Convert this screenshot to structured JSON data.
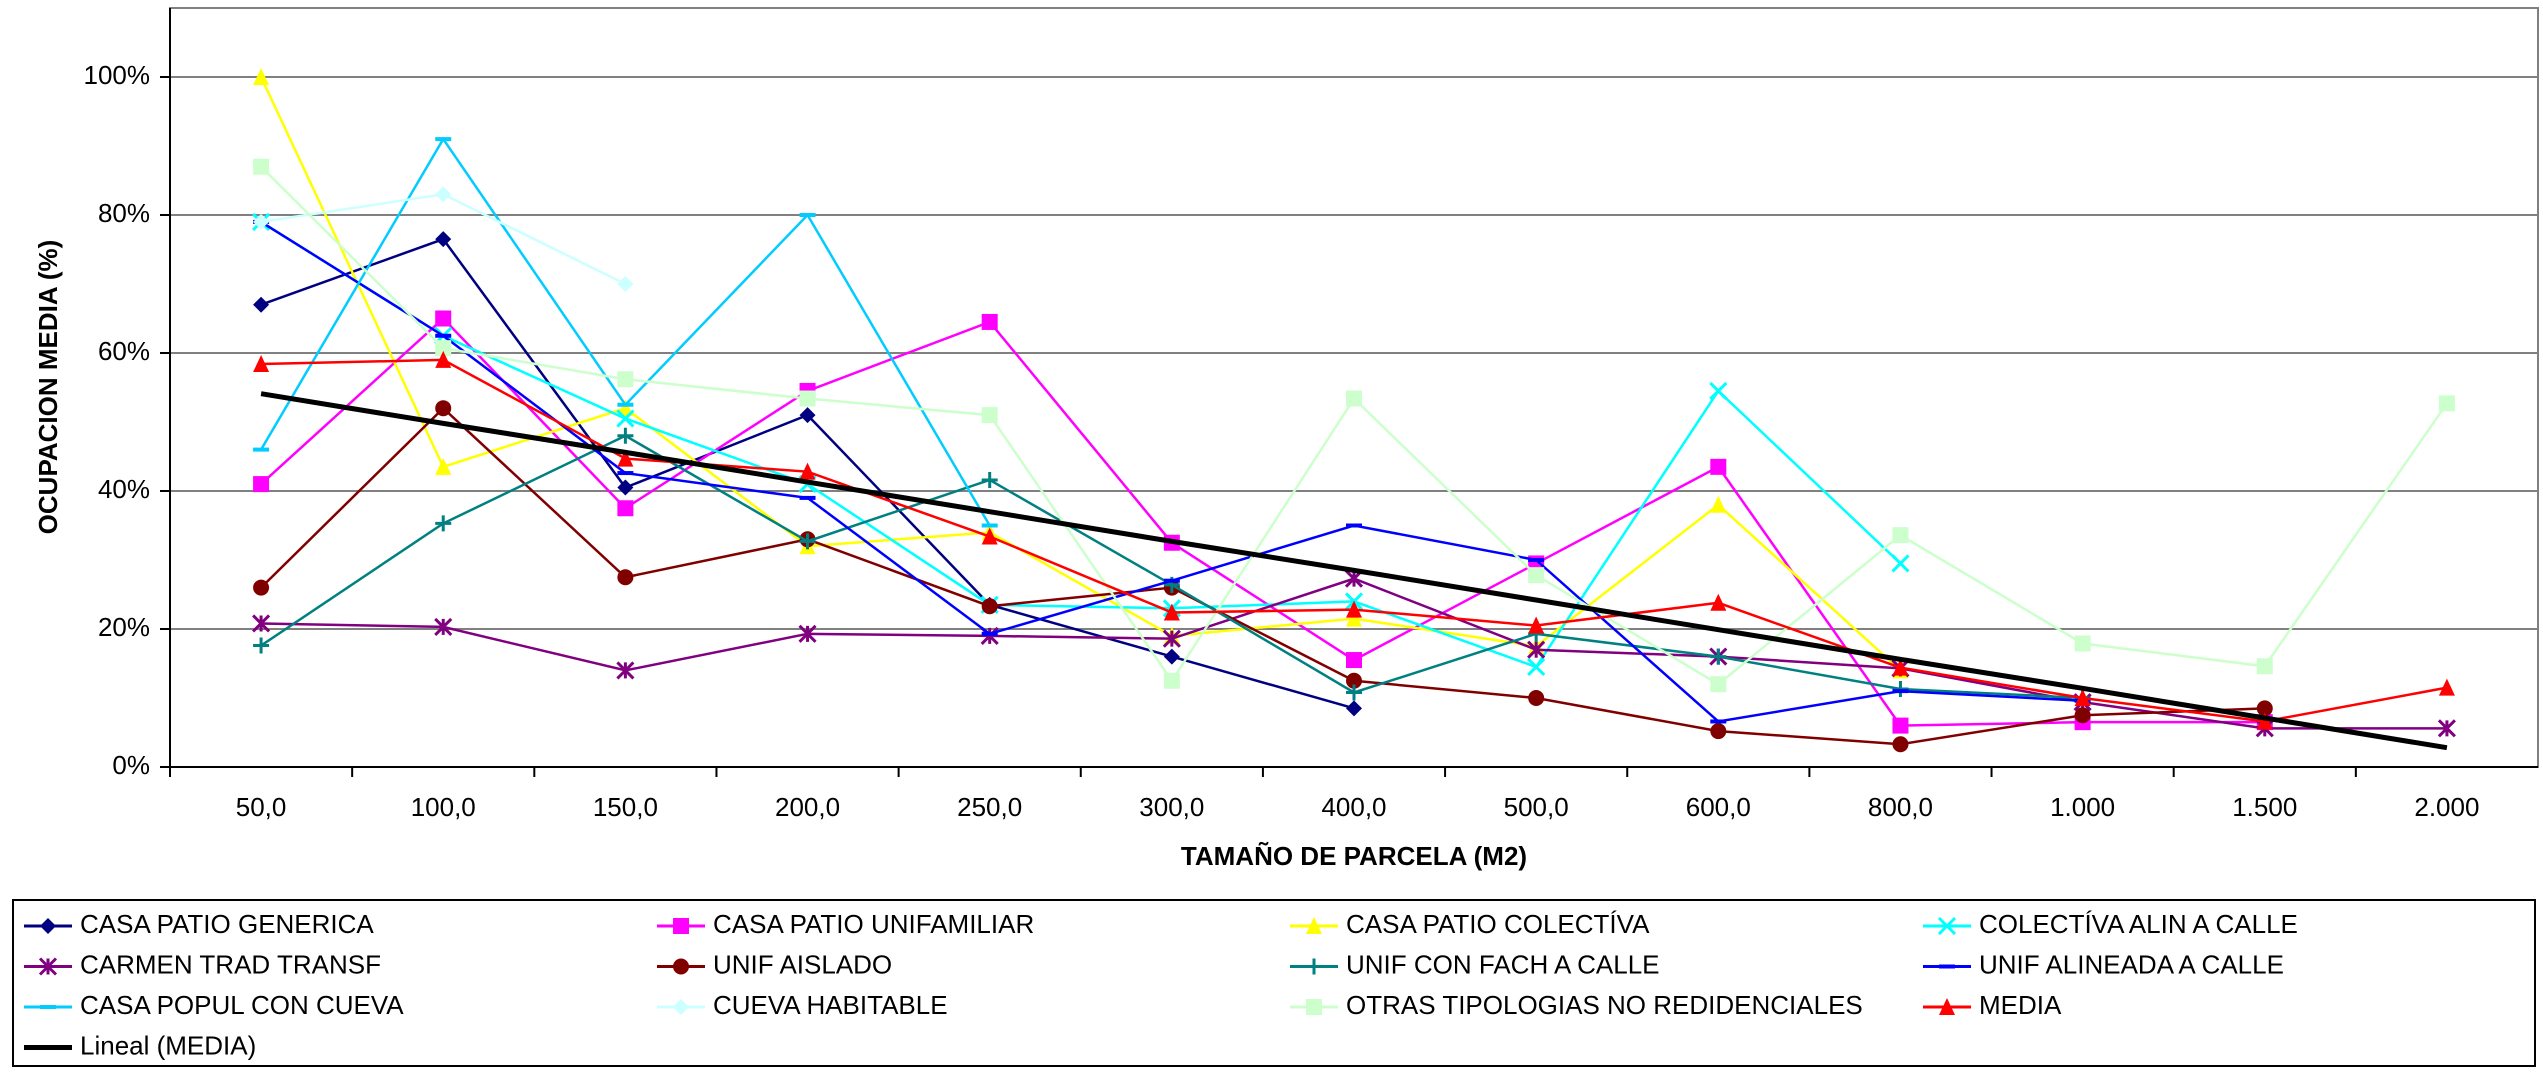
{
  "chart_data": {
    "type": "line",
    "xlabel": "TAMAÑO DE PARCELA (M2)",
    "ylabel": "OCUPACION MEDIA (%)",
    "categories": [
      "50,0",
      "100,0",
      "150,0",
      "200,0",
      "250,0",
      "300,0",
      "400,0",
      "500,0",
      "600,0",
      "800,0",
      "1.000",
      "1.500",
      "2.000"
    ],
    "ylim": [
      0,
      110
    ],
    "yticks": [
      {
        "value": 0,
        "label": "0%"
      },
      {
        "value": 20,
        "label": "20%"
      },
      {
        "value": 40,
        "label": "40%"
      },
      {
        "value": 60,
        "label": "60%"
      },
      {
        "value": 80,
        "label": "80%"
      },
      {
        "value": 100,
        "label": "100%"
      }
    ],
    "grid": true,
    "legend": "bottom",
    "series": [
      {
        "name": "CASA PATIO GENERICA",
        "color": "#000080",
        "marker": "diamond",
        "values": [
          67,
          76.5,
          40.5,
          51,
          23.5,
          16,
          8.5,
          null,
          null,
          null,
          null,
          null,
          null
        ]
      },
      {
        "name": "CASA PATIO UNIFAMILIAR",
        "color": "#ff00ff",
        "marker": "square",
        "values": [
          41,
          65,
          37.5,
          54.5,
          64.5,
          32.5,
          15.5,
          29.5,
          43.5,
          6,
          6.5,
          6.5,
          null
        ]
      },
      {
        "name": "CASA PATIO COLECTÍVA",
        "color": "#ffff00",
        "marker": "triangle",
        "values": [
          100,
          43.5,
          52,
          32,
          34,
          19,
          21.5,
          17.5,
          38,
          14,
          null,
          null,
          null
        ]
      },
      {
        "name": "COLECTÍVA ALIN A CALLE",
        "color": "#00ffff",
        "marker": "x",
        "values": [
          79,
          62.5,
          50.5,
          41,
          23.5,
          23,
          24,
          14.5,
          54.5,
          29.5,
          null,
          null,
          null
        ]
      },
      {
        "name": "CARMEN TRAD TRANSF",
        "color": "#800080",
        "marker": "star",
        "values": [
          20.8,
          20.3,
          14,
          19.3,
          19,
          18.6,
          27.3,
          17,
          16,
          14.3,
          9.4,
          5.6,
          5.6
        ]
      },
      {
        "name": "UNIF AISLADO",
        "color": "#800000",
        "marker": "circle",
        "values": [
          26,
          52,
          27.5,
          33,
          23.3,
          26,
          12.5,
          10,
          5.2,
          3.3,
          7.5,
          8.5,
          null
        ]
      },
      {
        "name": "UNIF CON FACH A CALLE",
        "color": "#008080",
        "marker": "plus",
        "values": [
          17.6,
          35.3,
          48,
          32.7,
          41.6,
          26.4,
          10.8,
          19.3,
          16,
          11.3,
          10,
          null,
          null
        ]
      },
      {
        "name": "UNIF ALINEADA A CALLE",
        "color": "#0000ff",
        "marker": "dash",
        "values": [
          79,
          62.5,
          42.6,
          39,
          19.3,
          27,
          35,
          30,
          6.6,
          11,
          9.6,
          null,
          null
        ]
      },
      {
        "name": "CASA POPUL CON CUEVA",
        "color": "#00ccff",
        "marker": "dash",
        "values": [
          46,
          91,
          52.5,
          80,
          35,
          null,
          null,
          null,
          null,
          null,
          null,
          null,
          null
        ]
      },
      {
        "name": "CUEVA HABITABLE",
        "color": "#ccffff",
        "marker": "diamond",
        "values": [
          79,
          83,
          70,
          null,
          null,
          null,
          null,
          null,
          null,
          null,
          null,
          null,
          null
        ]
      },
      {
        "name": "OTRAS TIPOLOGIAS NO REDIDENCIALES",
        "color": "#ccffcc",
        "marker": "square",
        "values": [
          87,
          60.7,
          56.2,
          53.4,
          51,
          12.5,
          53.4,
          27.8,
          12,
          33.6,
          17.9,
          14.6,
          52.7
        ]
      },
      {
        "name": "MEDIA",
        "color": "#ff0000",
        "marker": "triangle",
        "values": [
          58.4,
          59,
          44.7,
          42.8,
          33.4,
          22.4,
          22.8,
          20.5,
          23.8,
          14.4,
          10,
          6.6,
          11.5
        ]
      },
      {
        "name": "Lineal (MEDIA)",
        "color": "#000000",
        "marker": "none",
        "width": 5,
        "values": [
          54.1,
          49.8,
          45.6,
          41.3,
          37.0,
          32.7,
          28.5,
          24.2,
          19.9,
          15.6,
          11.4,
          7.1,
          2.8
        ]
      }
    ]
  }
}
